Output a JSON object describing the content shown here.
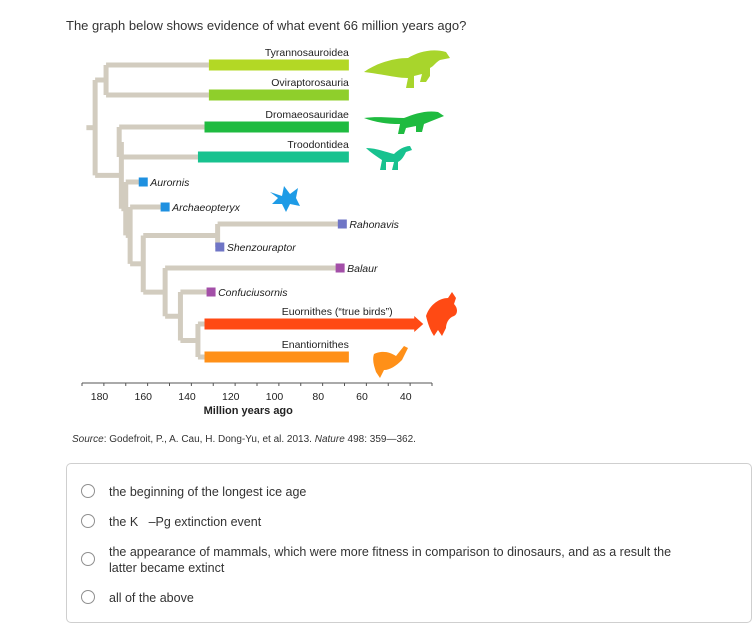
{
  "question": "The graph below shows evidence of what event 66 million years ago?",
  "chart_data": {
    "type": "phylogenetic-timeline",
    "x_axis": {
      "label": "Million years ago",
      "range": [
        188,
        28
      ],
      "ticks": [
        180,
        160,
        140,
        120,
        100,
        80,
        60,
        40
      ]
    },
    "terminal_taxa": [
      {
        "name": "Tyrannosauroidea",
        "start": 130,
        "end": 66,
        "color": "#b3d825",
        "style": "bar"
      },
      {
        "name": "Oviraptorosauria",
        "start": 130,
        "end": 66,
        "color": "#8fcf2b",
        "style": "bar"
      },
      {
        "name": "Dromaeosauridae",
        "start": 132,
        "end": 66,
        "color": "#1fbb40",
        "style": "bar"
      },
      {
        "name": "Troodontidea",
        "start": 135,
        "end": 66,
        "color": "#18c28f",
        "style": "bar"
      },
      {
        "name": "Aurornis",
        "time": 160,
        "color": "#1e90e0",
        "style": "point"
      },
      {
        "name": "Archaeopteryx",
        "time": 150,
        "color": "#1e90e0",
        "style": "point"
      },
      {
        "name": "Rahonavis",
        "time": 69,
        "color": "#6f75c6",
        "style": "point"
      },
      {
        "name": "Shenzouraptor",
        "time": 125,
        "color": "#6f75c6",
        "style": "point"
      },
      {
        "name": "Balaur",
        "time": 70,
        "color": "#a34fa8",
        "style": "point"
      },
      {
        "name": "Confuciusornis",
        "time": 129,
        "color": "#a34fa8",
        "style": "point"
      },
      {
        "name": "Euornithes (“true birds”)",
        "start": 132,
        "end": 32,
        "color": "#ff4a14",
        "style": "arrow"
      },
      {
        "name": "Enantiornithes",
        "start": 132,
        "end": 66,
        "color": "#ff9018",
        "style": "bar"
      }
    ],
    "source": {
      "prefix": "Source",
      "text": ": Godefroit, P., A. Cau, H. Dong-Yu, et al. 2013. ",
      "journal": "Nature",
      "ref": " 498: 359—362."
    }
  },
  "options": [
    {
      "label": "the beginning of the longest ice age"
    },
    {
      "label": "the K   –Pg extinction event"
    },
    {
      "label": "the appearance of mammals, which were more fitness in comparison to dinosaurs, and as a result the latter became extinct"
    },
    {
      "label": "all of the above"
    }
  ]
}
